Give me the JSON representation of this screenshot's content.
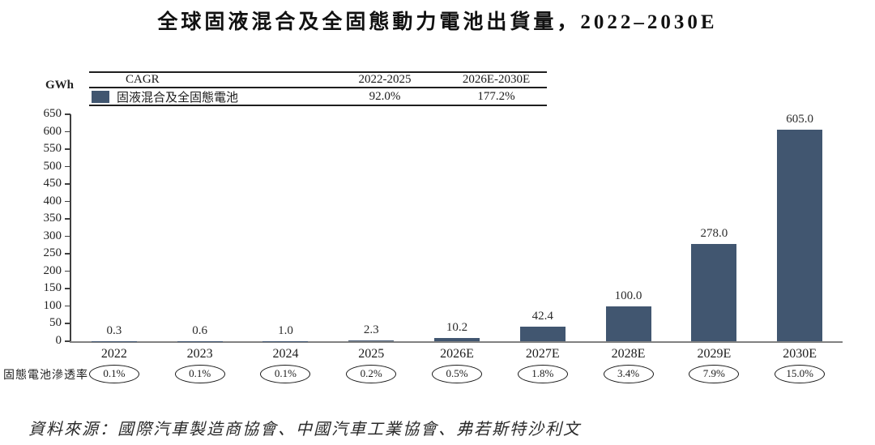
{
  "title": "全球固液混合及全固態動力電池出貨量，2022–2030E",
  "unit_label": "GWh",
  "cagr_table": {
    "header": [
      "CAGR",
      "2022-2025",
      "2026E-2030E"
    ],
    "row": {
      "series_label": "固液混合及全固態電池",
      "values": [
        "92.0%",
        "177.2%"
      ]
    }
  },
  "penetration_label": "固態電池滲透率",
  "source": "資料來源：國際汽車製造商協會、中國汽車工業協會、弗若斯特沙利文",
  "colors": {
    "bar": "#415670",
    "axis": "#3f3f3f",
    "baseline": "#818181"
  },
  "chart_data": {
    "type": "bar",
    "title": "全球固液混合及全固態動力電池出貨量，2022–2030E",
    "ylabel": "GWh",
    "categories": [
      "2022",
      "2023",
      "2024",
      "2025",
      "2026E",
      "2027E",
      "2028E",
      "2029E",
      "2030E"
    ],
    "values": [
      0.3,
      0.6,
      1.0,
      2.3,
      10.2,
      42.4,
      100.0,
      278.0,
      605.0
    ],
    "value_labels": [
      "0.3",
      "0.6",
      "1.0",
      "2.3",
      "10.2",
      "42.4",
      "100.0",
      "278.0",
      "605.0"
    ],
    "penetration_rate": [
      "0.1%",
      "0.1%",
      "0.1%",
      "0.2%",
      "0.5%",
      "1.8%",
      "3.4%",
      "7.9%",
      "15.0%"
    ],
    "series": [
      {
        "name": "固液混合及全固態電池",
        "cagr_2022_2025": "92.0%",
        "cagr_2026E_2030E": "177.2%"
      }
    ],
    "ylim": [
      0,
      650
    ],
    "ytick_step": 50,
    "grid": false,
    "legend_position": "top-table"
  }
}
